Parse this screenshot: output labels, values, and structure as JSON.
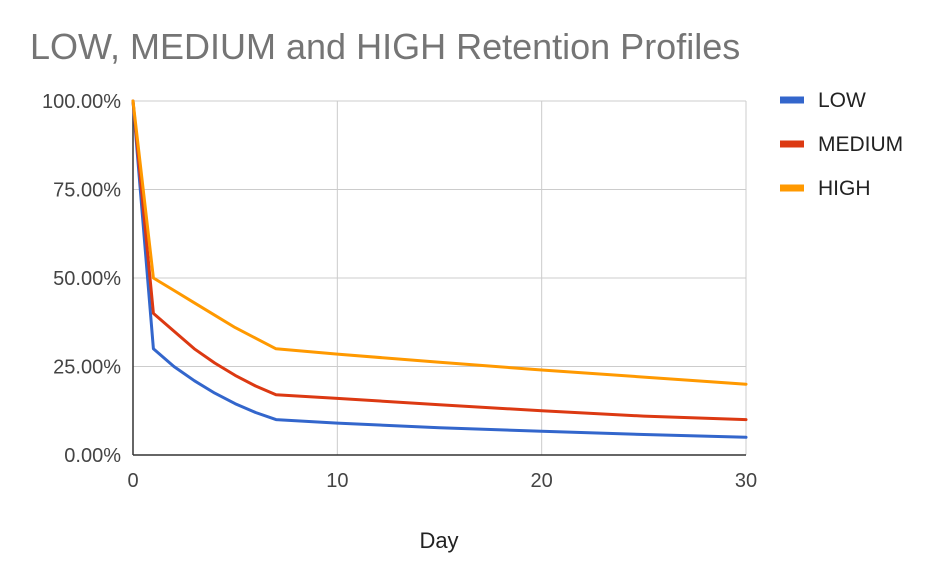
{
  "chart_data": {
    "type": "line",
    "title": "LOW, MEDIUM and HIGH Retention Profiles",
    "xlabel": "Day",
    "ylabel": "",
    "xlim": [
      0,
      30
    ],
    "ylim": [
      0,
      1
    ],
    "x_ticks": [
      0,
      10,
      20,
      30
    ],
    "x_tick_labels": [
      "0",
      "10",
      "20",
      "30"
    ],
    "y_ticks": [
      0,
      0.25,
      0.5,
      0.75,
      1
    ],
    "y_tick_labels": [
      "0.00%",
      "25.00%",
      "50.00%",
      "75.00%",
      "100.00%"
    ],
    "grid": true,
    "legend_position": "right",
    "series": [
      {
        "name": "LOW",
        "color": "#3366cc",
        "points": [
          [
            0,
            1.0
          ],
          [
            1,
            0.3
          ],
          [
            2,
            0.25
          ],
          [
            3,
            0.21
          ],
          [
            4,
            0.175
          ],
          [
            5,
            0.145
          ],
          [
            6,
            0.12
          ],
          [
            7,
            0.1
          ],
          [
            10,
            0.09
          ],
          [
            15,
            0.077
          ],
          [
            20,
            0.067
          ],
          [
            25,
            0.058
          ],
          [
            30,
            0.05
          ]
        ]
      },
      {
        "name": "MEDIUM",
        "color": "#dc3912",
        "points": [
          [
            0,
            1.0
          ],
          [
            1,
            0.4
          ],
          [
            2,
            0.35
          ],
          [
            3,
            0.3
          ],
          [
            4,
            0.26
          ],
          [
            5,
            0.225
          ],
          [
            6,
            0.195
          ],
          [
            7,
            0.17
          ],
          [
            10,
            0.16
          ],
          [
            15,
            0.142
          ],
          [
            20,
            0.125
          ],
          [
            25,
            0.11
          ],
          [
            30,
            0.1
          ]
        ]
      },
      {
        "name": "HIGH",
        "color": "#ff9900",
        "points": [
          [
            0,
            1.0
          ],
          [
            1,
            0.5
          ],
          [
            2,
            0.465
          ],
          [
            3,
            0.43
          ],
          [
            4,
            0.395
          ],
          [
            5,
            0.36
          ],
          [
            6,
            0.33
          ],
          [
            7,
            0.3
          ],
          [
            10,
            0.285
          ],
          [
            15,
            0.262
          ],
          [
            20,
            0.24
          ],
          [
            25,
            0.22
          ],
          [
            30,
            0.2
          ]
        ]
      }
    ]
  }
}
